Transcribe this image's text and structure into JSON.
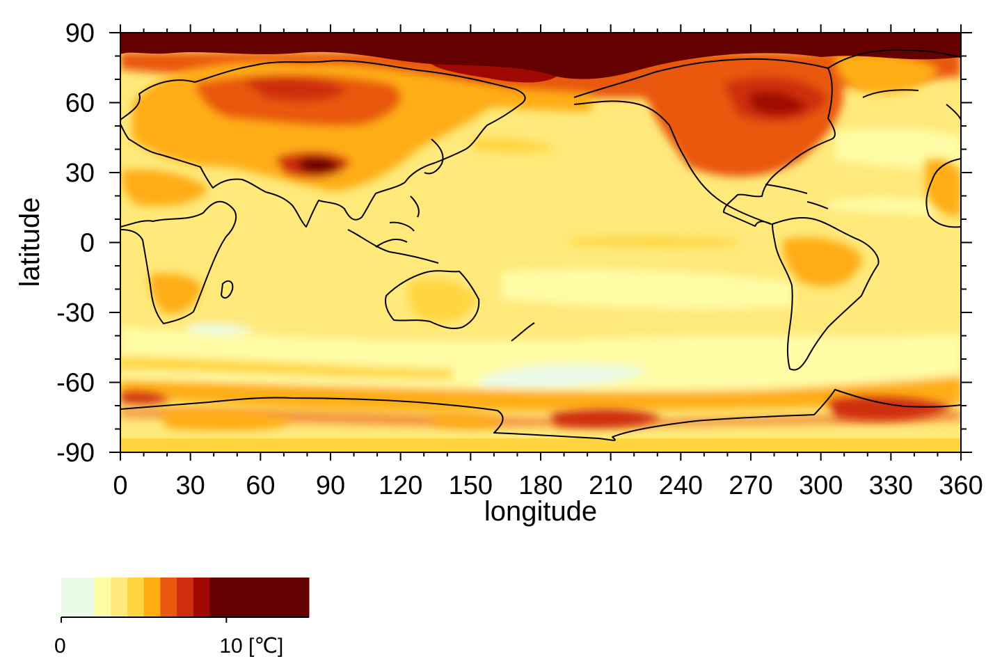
{
  "figure": {
    "type": "map",
    "projection": "equirectangular",
    "variable_units": "[℃]"
  },
  "axes": {
    "xlabel": "longitude",
    "ylabel": "latitude",
    "xlim": [
      0,
      360
    ],
    "ylim": [
      -90,
      90
    ],
    "xticks": [
      "0",
      "30",
      "60",
      "90",
      "120",
      "150",
      "180",
      "210",
      "240",
      "270",
      "300",
      "330",
      "360"
    ],
    "yticks": [
      "90",
      "60",
      "30",
      "0",
      "-30",
      "-60",
      "-90"
    ],
    "minor_tick_step_deg": 10
  },
  "colorbar": {
    "levels": [
      0,
      2,
      3,
      4,
      5,
      6,
      7,
      8,
      9,
      15
    ],
    "colors": [
      "#eafbe8",
      "#fffca6",
      "#ffe97b",
      "#ffd640",
      "#ffad13",
      "#e9580e",
      "#cf2d0d",
      "#a00903",
      "#650000"
    ],
    "labels": [
      {
        "value": 0,
        "text": "0"
      },
      {
        "value": 10,
        "text": "10 [℃]"
      }
    ]
  },
  "map_colors": {
    "background": "#ffe97b",
    "coastline": "#000000"
  }
}
